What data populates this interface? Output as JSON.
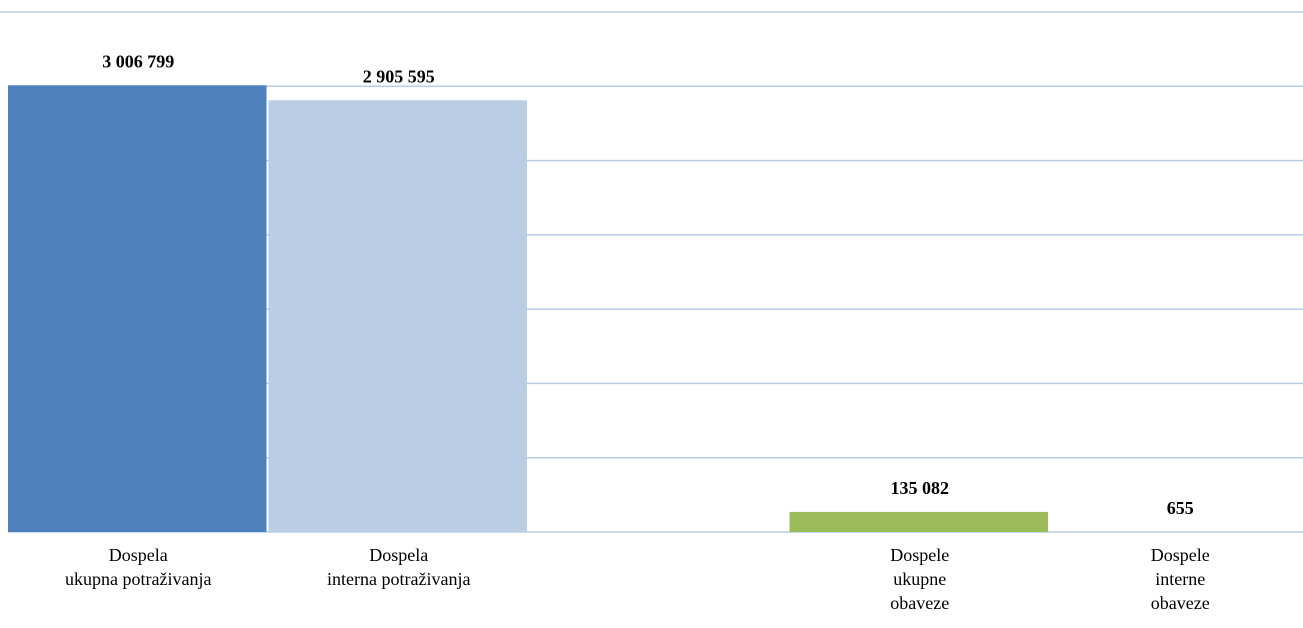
{
  "chart_data": {
    "type": "bar",
    "categories": [
      "Dospela\nukupna potraživanja",
      "Dospela\ninterna potraživanja",
      null,
      "Dospele\nukupne\nobaveze",
      "Dospele\ninterne\nobaveze"
    ],
    "values": [
      3006799,
      2905595,
      null,
      135082,
      655
    ],
    "value_labels": [
      "3 006 799",
      "2 905 595",
      null,
      "135 082",
      "655"
    ],
    "colors": [
      "#4f81bd",
      "#b9cde5",
      null,
      "#9bbb59",
      "#9bbb59"
    ],
    "ylim": [
      0,
      3500000
    ],
    "yticks": [
      0,
      500000,
      1000000,
      1500000,
      2000000,
      2500000,
      3000000,
      3500000
    ],
    "grid": true
  }
}
